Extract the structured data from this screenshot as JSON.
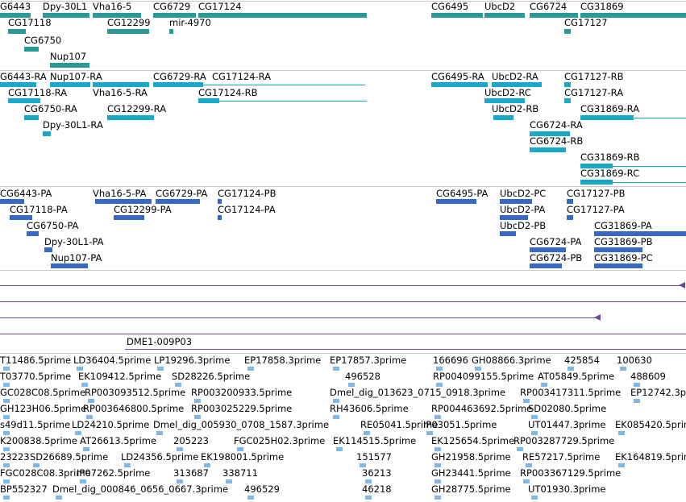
{
  "colors": {
    "gene": "#2b9a96",
    "mrna": "#18a8c8",
    "protein": "#3568c8",
    "clone": "#6a4a9a",
    "est": "#7fb8e6",
    "divider": "#c8c8c8"
  },
  "tracks": {
    "genes": [
      {
        "label": "G6443"
      },
      {
        "label": "Dpy-30L1"
      },
      {
        "label": "Vha16-5"
      },
      {
        "label": "CG6729"
      },
      {
        "label": "CG17124"
      },
      {
        "label": "CG6495"
      },
      {
        "label": "UbcD2"
      },
      {
        "label": "CG6724"
      },
      {
        "label": "CG31869"
      },
      {
        "label": "CG17118"
      },
      {
        "label": "CG12299"
      },
      {
        "label": "mir-4970"
      },
      {
        "label": "CG17127"
      },
      {
        "label": "CG6750"
      },
      {
        "label": "Nup107"
      }
    ],
    "transcripts": [
      {
        "label": "G6443-RA"
      },
      {
        "label": "Nup107-RA"
      },
      {
        "label": "Vha16-5-RA"
      },
      {
        "label": "CG6729-RA"
      },
      {
        "label": "CG17124-RA"
      },
      {
        "label": "CG6495-RA"
      },
      {
        "label": "UbcD2-RA"
      },
      {
        "label": "CG17127-RB"
      },
      {
        "label": "CG17118-RA"
      },
      {
        "label": "CG17124-RB"
      },
      {
        "label": "UbcD2-RC"
      },
      {
        "label": "CG17127-RA"
      },
      {
        "label": "CG6750-RA"
      },
      {
        "label": "CG12299-RA"
      },
      {
        "label": "UbcD2-RB"
      },
      {
        "label": "CG31869-RA"
      },
      {
        "label": "Dpy-30L1-RA"
      },
      {
        "label": "CG6724-RA"
      },
      {
        "label": "CG6724-RB"
      },
      {
        "label": "CG31869-RB"
      },
      {
        "label": "CG31869-RC"
      }
    ],
    "proteins": [
      {
        "label": "CG6443-PA"
      },
      {
        "label": "Vha16-5-PA"
      },
      {
        "label": "CG6729-PA"
      },
      {
        "label": "CG17124-PB"
      },
      {
        "label": "CG6495-PA"
      },
      {
        "label": "UbcD2-PC"
      },
      {
        "label": "CG17127-PB"
      },
      {
        "label": "CG17118-PA"
      },
      {
        "label": "CG12299-PA"
      },
      {
        "label": "CG17124-PA"
      },
      {
        "label": "UbcD2-PA"
      },
      {
        "label": "CG17127-PA"
      },
      {
        "label": "CG6750-PA"
      },
      {
        "label": "UbcD2-PB"
      },
      {
        "label": "CG31869-PA"
      },
      {
        "label": "Dpy-30L1-PA"
      },
      {
        "label": "CG6724-PA"
      },
      {
        "label": "CG31869-PB"
      },
      {
        "label": "Nup107-PA"
      },
      {
        "label": "CG6724-PB"
      },
      {
        "label": "CG31869-PC"
      }
    ],
    "clones": {
      "label": "DME1-009P03"
    },
    "ests": [
      [
        "T11486.5prime",
        "LD36404.5prime",
        "LP19296.3prime",
        "EP17858.3prime",
        "EP17857.3prime",
        "166696",
        "GH08866.3prime",
        "425854",
        "100630"
      ],
      [
        "T03770.5prime",
        "EK109412.5prime",
        "SD28226.5prime",
        "496528",
        "RP004099155.5prime",
        "AT05849.5prime",
        "488609"
      ],
      [
        "GC028C08.5prime",
        "RP003093512.5prime",
        "RP003200933.5prime",
        "Dmel_dig_013623_0715_0918.3prime",
        "RP003417311.5prime",
        "EP12742.3prime"
      ],
      [
        "GH123H06.5prime",
        "RP003646800.5prime",
        "RP003025229.5prime",
        "RH43606.5prime",
        "RP004463692.5prime",
        "SD02080.5prime"
      ],
      [
        "s49d11.5prime",
        "LD24210.5prime",
        "Dmel_dig_005930_0708_1587.3prime",
        "RE05041.5prime",
        "IP03051.5prime",
        "UT01447.3prime",
        "EK085420.5prime"
      ],
      [
        "K200838.5prime",
        "AT26613.5prime",
        "205223",
        "FGC025H02.3prime",
        "EK114515.5prime",
        "EK125654.5prime",
        "RP003287729.5prime"
      ],
      [
        "23223",
        "SD26689.5prime",
        "LD24356.5prime",
        "EK198001.5prime",
        "151577",
        "GH21958.5prime",
        "RE57217.5prime",
        "EK164819.5prime"
      ],
      [
        "FGC028C08.3prime",
        "IP07262.5prime",
        "313687",
        "338711",
        "36213",
        "GH23441.5prime",
        "RP003367129.5prime"
      ],
      [
        "BP552327",
        "Dmel_dig_000846_0656_0667.3prime",
        "496529",
        "46218",
        "GH28775.5prime",
        "UT01930.3prime"
      ]
    ]
  }
}
